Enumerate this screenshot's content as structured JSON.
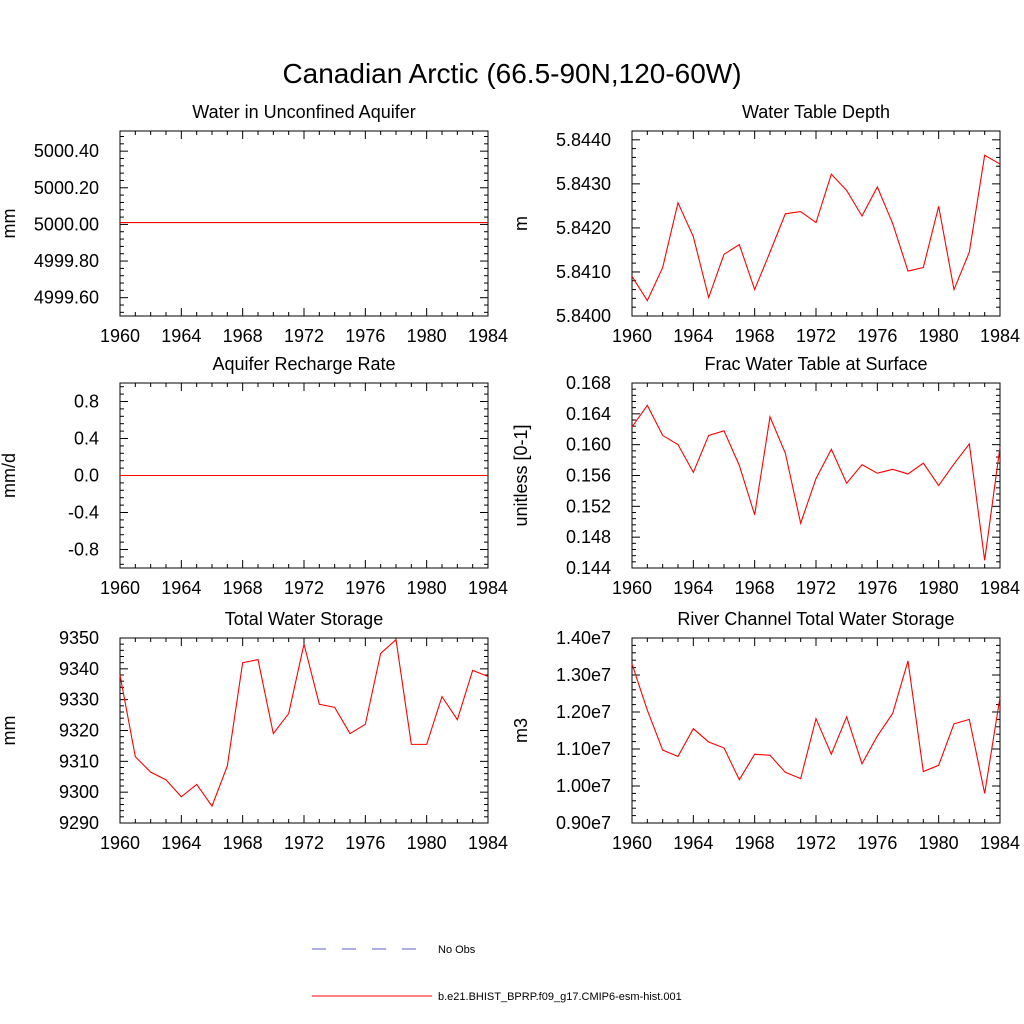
{
  "figure": {
    "title": "Canadian Arctic (66.5-90N,120-60W)"
  },
  "legend": {
    "items": [
      {
        "label": "No Obs",
        "color": "#5b5bd6",
        "style": "dashed"
      },
      {
        "label": "b.e21.BHIST_BPRP.f09_g17.CMIP6-esm-hist.001",
        "color": "#ff0000",
        "style": "solid"
      }
    ]
  },
  "chart_data": [
    {
      "type": "line",
      "title": "Water in Unconfined Aquifer",
      "ylabel": "mm",
      "xlim": [
        1960,
        1984
      ],
      "ylim": [
        4999.5,
        5000.51
      ],
      "xticks": [
        "1960",
        "1964",
        "1968",
        "1972",
        "1976",
        "1980",
        "1984"
      ],
      "yticks": [
        4999.6,
        4999.8,
        5000.0,
        5000.2,
        5000.4
      ],
      "ytick_labels": [
        "4999.60",
        "4999.80",
        "5000.00",
        "5000.20",
        "5000.40"
      ],
      "series": [
        {
          "color": "#ff0000",
          "x": [
            1960,
            1961,
            1962,
            1963,
            1964,
            1965,
            1966,
            1967,
            1968,
            1969,
            1970,
            1971,
            1972,
            1973,
            1974,
            1975,
            1976,
            1977,
            1978,
            1979,
            1980,
            1981,
            1982,
            1983,
            1984
          ],
          "y": [
            5000.01,
            5000.01,
            5000.01,
            5000.01,
            5000.01,
            5000.01,
            5000.01,
            5000.01,
            5000.01,
            5000.01,
            5000.01,
            5000.01,
            5000.01,
            5000.01,
            5000.01,
            5000.01,
            5000.01,
            5000.01,
            5000.01,
            5000.01,
            5000.01,
            5000.01,
            5000.01,
            5000.01,
            5000.01
          ]
        }
      ]
    },
    {
      "type": "line",
      "title": "Water Table Depth",
      "ylabel": "m",
      "xlim": [
        1960,
        1984
      ],
      "ylim": [
        5.84,
        5.8442
      ],
      "xticks": [
        "1960",
        "1964",
        "1968",
        "1972",
        "1976",
        "1980",
        "1984"
      ],
      "yticks": [
        5.84,
        5.841,
        5.842,
        5.843,
        5.844
      ],
      "ytick_labels": [
        "5.8400",
        "5.8410",
        "5.8420",
        "5.8430",
        "5.8440"
      ],
      "series": [
        {
          "color": "#ff0000",
          "x": [
            1960,
            1961,
            1962,
            1963,
            1964,
            1965,
            1966,
            1967,
            1968,
            1969,
            1970,
            1971,
            1972,
            1973,
            1974,
            1975,
            1976,
            1977,
            1978,
            1979,
            1980,
            1981,
            1982,
            1983,
            1984
          ],
          "y": [
            5.8409,
            5.84035,
            5.8411,
            5.84257,
            5.8418,
            5.84042,
            5.8414,
            5.84162,
            5.8406,
            5.84145,
            5.84232,
            5.84237,
            5.84212,
            5.84322,
            5.84285,
            5.84227,
            5.84293,
            5.8421,
            5.84102,
            5.8411,
            5.84249,
            5.8406,
            5.84145,
            5.84365,
            5.84345
          ]
        }
      ]
    },
    {
      "type": "line",
      "title": "Aquifer Recharge Rate",
      "ylabel": "mm/d",
      "xlim": [
        1960,
        1984
      ],
      "ylim": [
        -1.0,
        1.0
      ],
      "xticks": [
        "1960",
        "1964",
        "1968",
        "1972",
        "1976",
        "1980",
        "1984"
      ],
      "yticks": [
        -0.8,
        -0.4,
        0.0,
        0.4,
        0.8
      ],
      "ytick_labels": [
        "-0.8",
        "-0.4",
        "0.0",
        "0.4",
        "0.8"
      ],
      "series": [
        {
          "color": "#ff0000",
          "x": [
            1960,
            1961,
            1962,
            1963,
            1964,
            1965,
            1966,
            1967,
            1968,
            1969,
            1970,
            1971,
            1972,
            1973,
            1974,
            1975,
            1976,
            1977,
            1978,
            1979,
            1980,
            1981,
            1982,
            1983,
            1984
          ],
          "y": [
            0,
            0,
            0,
            0,
            0,
            0,
            0,
            0,
            0,
            0,
            0,
            0,
            0,
            0,
            0,
            0,
            0,
            0,
            0,
            0,
            0,
            0,
            0,
            0,
            0
          ]
        }
      ]
    },
    {
      "type": "line",
      "title": "Frac Water Table at Surface",
      "ylabel": "unitless [0-1]",
      "xlim": [
        1960,
        1984
      ],
      "ylim": [
        0.144,
        0.168
      ],
      "xticks": [
        "1960",
        "1964",
        "1968",
        "1972",
        "1976",
        "1980",
        "1984"
      ],
      "yticks": [
        0.144,
        0.148,
        0.152,
        0.156,
        0.16,
        0.164,
        0.168
      ],
      "ytick_labels": [
        "0.144",
        "0.148",
        "0.152",
        "0.156",
        "0.160",
        "0.164",
        "0.168"
      ],
      "series": [
        {
          "color": "#ff0000",
          "x": [
            1960,
            1961,
            1962,
            1963,
            1964,
            1965,
            1966,
            1967,
            1968,
            1969,
            1970,
            1971,
            1972,
            1973,
            1974,
            1975,
            1976,
            1977,
            1978,
            1979,
            1980,
            1981,
            1982,
            1983,
            1984
          ],
          "y": [
            0.1623,
            0.1651,
            0.1612,
            0.16,
            0.1564,
            0.1612,
            0.1618,
            0.1573,
            0.1509,
            0.1636,
            0.1589,
            0.1498,
            0.1556,
            0.1594,
            0.155,
            0.1574,
            0.1563,
            0.1568,
            0.1562,
            0.1576,
            0.1547,
            0.1575,
            0.1601,
            0.145,
            0.1597
          ]
        }
      ]
    },
    {
      "type": "line",
      "title": "Total Water Storage",
      "ylabel": "mm",
      "xlim": [
        1960,
        1984
      ],
      "ylim": [
        9290,
        9350
      ],
      "xticks": [
        "1960",
        "1964",
        "1968",
        "1972",
        "1976",
        "1980",
        "1984"
      ],
      "yticks": [
        9290,
        9300,
        9310,
        9320,
        9330,
        9340,
        9350
      ],
      "ytick_labels": [
        "9290",
        "9300",
        "9310",
        "9320",
        "9330",
        "9340",
        "9350"
      ],
      "series": [
        {
          "color": "#ff0000",
          "x": [
            1960,
            1961,
            1962,
            1963,
            1964,
            1965,
            1966,
            1967,
            1968,
            1969,
            1970,
            1971,
            1972,
            1973,
            1974,
            1975,
            1976,
            1977,
            1978,
            1979,
            1980,
            1981,
            1982,
            1983,
            1984
          ],
          "y": [
            9338,
            9311.5,
            9306.5,
            9304,
            9298.5,
            9302.5,
            9295.5,
            9308.5,
            9342,
            9343,
            9319,
            9325.5,
            9348,
            9328.5,
            9327.5,
            9319,
            9322,
            9345,
            9349.5,
            9315.5,
            9315.5,
            9331,
            9323.5,
            9339.5,
            9337.5
          ]
        }
      ]
    },
    {
      "type": "line",
      "title": "River Channel Total Water Storage",
      "ylabel": "m3",
      "xlim": [
        1960,
        1984
      ],
      "ylim": [
        9000000,
        14000000
      ],
      "xticks": [
        "1960",
        "1964",
        "1968",
        "1972",
        "1976",
        "1980",
        "1984"
      ],
      "yticks": [
        9000000,
        10000000,
        11000000,
        12000000,
        13000000,
        14000000
      ],
      "ytick_labels": [
        "0.90e7",
        "1.00e7",
        "1.10e7",
        "1.20e7",
        "1.30e7",
        "1.40e7"
      ],
      "series": [
        {
          "color": "#ff0000",
          "x": [
            1960,
            1961,
            1962,
            1963,
            1964,
            1965,
            1966,
            1967,
            1968,
            1969,
            1970,
            1971,
            1972,
            1973,
            1974,
            1975,
            1976,
            1977,
            1978,
            1979,
            1980,
            1981,
            1982,
            1983,
            1984
          ],
          "y": [
            13300000,
            12050000,
            10970000,
            10800000,
            11550000,
            11190000,
            11030000,
            10170000,
            10860000,
            10830000,
            10370000,
            10200000,
            11820000,
            10860000,
            11870000,
            10600000,
            11350000,
            11960000,
            13380000,
            10390000,
            10560000,
            11680000,
            11800000,
            9800000,
            12400000
          ]
        }
      ]
    }
  ]
}
